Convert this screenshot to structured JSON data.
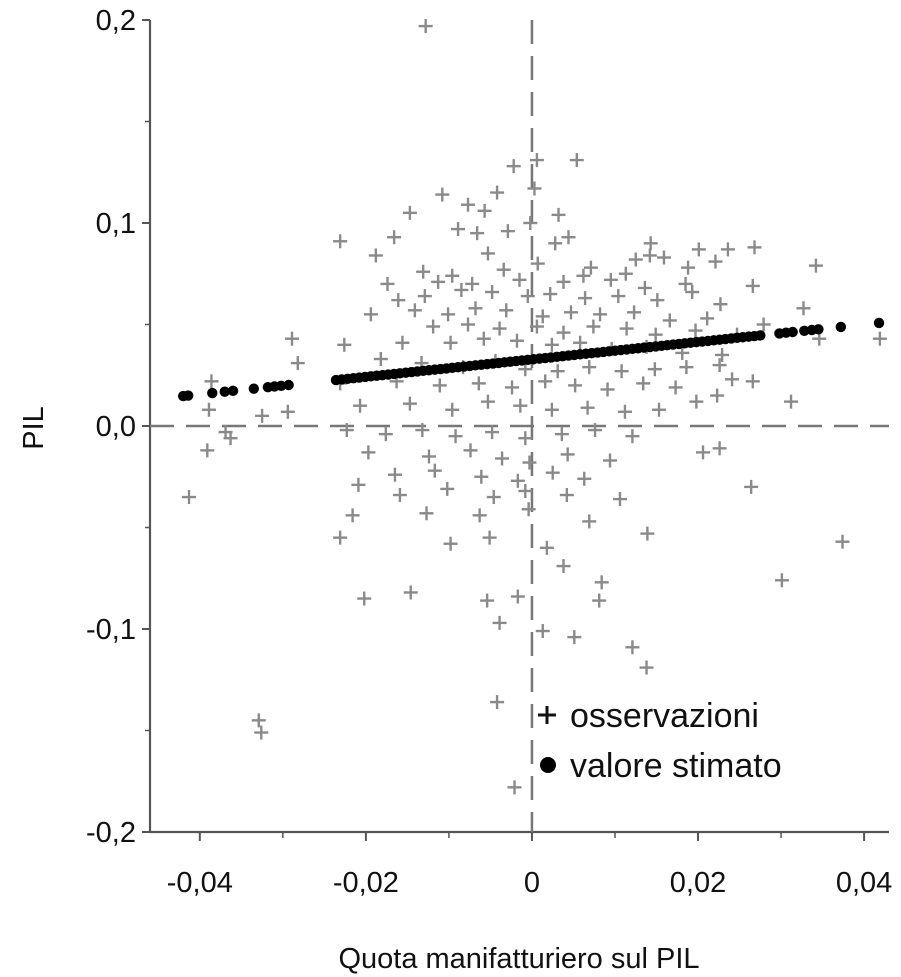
{
  "chart_data": {
    "type": "scatter",
    "title": "",
    "xlabel": "Quota manifatturiero sul PIL",
    "ylabel": "PIL",
    "xlim": [
      -0.046,
      0.043
    ],
    "ylim": [
      -0.2,
      0.2
    ],
    "x_ticks": [
      {
        "value": -0.04,
        "label": "-0,04"
      },
      {
        "value": -0.02,
        "label": "-0,02"
      },
      {
        "value": 0,
        "label": "0"
      },
      {
        "value": 0.02,
        "label": "0,02"
      },
      {
        "value": 0.04,
        "label": "0,04"
      }
    ],
    "y_ticks": [
      {
        "value": 0.2,
        "label": "0,2"
      },
      {
        "value": 0.1,
        "label": "0,1"
      },
      {
        "value": 0.0,
        "label": "0,0"
      },
      {
        "value": -0.1,
        "label": "-0,1"
      },
      {
        "value": -0.2,
        "label": "-0,2"
      }
    ],
    "reference_lines": {
      "x": 0,
      "y": 0,
      "style": "dashed"
    },
    "grid": false,
    "legend": {
      "position": "bottom-right",
      "entries": [
        {
          "marker": "plus",
          "label": "osservazioni",
          "color": "#8a8a8a"
        },
        {
          "marker": "dot",
          "label": "valore stimato",
          "color": "#000000"
        }
      ]
    },
    "series": [
      {
        "name": "osservazioni",
        "marker": "plus",
        "color": "#8a8a8a",
        "points": [
          [
            -0.0128,
            0.197
          ],
          [
            0.0006,
            0.131
          ],
          [
            -0.0022,
            0.128
          ],
          [
            0.0054,
            0.131
          ],
          [
            -0.0042,
            0.115
          ],
          [
            -0.0108,
            0.114
          ],
          [
            -0.0077,
            0.109
          ],
          [
            0.0003,
            0.117
          ],
          [
            -0.0057,
            0.106
          ],
          [
            -0.0147,
            0.105
          ],
          [
            -0.0002,
            0.1
          ],
          [
            0.0032,
            0.104
          ],
          [
            -0.0089,
            0.097
          ],
          [
            -0.0066,
            0.095
          ],
          [
            -0.0029,
            0.096
          ],
          [
            0.0044,
            0.093
          ],
          [
            -0.0231,
            0.091
          ],
          [
            -0.0166,
            0.093
          ],
          [
            0.0028,
            0.09
          ],
          [
            0.0143,
            0.09
          ],
          [
            0.0142,
            0.084
          ],
          [
            0.0201,
            0.087
          ],
          [
            0.0236,
            0.087
          ],
          [
            0.0268,
            0.088
          ],
          [
            -0.0188,
            0.084
          ],
          [
            -0.0053,
            0.085
          ],
          [
            0.0007,
            0.08
          ],
          [
            0.0071,
            0.078
          ],
          [
            0.0125,
            0.082
          ],
          [
            0.0159,
            0.083
          ],
          [
            0.0221,
            0.081
          ],
          [
            -0.0131,
            0.076
          ],
          [
            -0.0096,
            0.074
          ],
          [
            -0.0034,
            0.077
          ],
          [
            0.0062,
            0.074
          ],
          [
            0.0113,
            0.075
          ],
          [
            0.0188,
            0.078
          ],
          [
            0.0342,
            0.079
          ],
          [
            -0.0174,
            0.07
          ],
          [
            -0.0113,
            0.071
          ],
          [
            -0.0072,
            0.07
          ],
          [
            -0.0015,
            0.072
          ],
          [
            0.0038,
            0.071
          ],
          [
            0.0095,
            0.072
          ],
          [
            0.0136,
            0.068
          ],
          [
            0.0185,
            0.07
          ],
          [
            0.0266,
            0.069
          ],
          [
            -0.0161,
            0.062
          ],
          [
            -0.0129,
            0.064
          ],
          [
            -0.0085,
            0.067
          ],
          [
            -0.0048,
            0.066
          ],
          [
            -0.0005,
            0.064
          ],
          [
            0.0022,
            0.065
          ],
          [
            0.0064,
            0.063
          ],
          [
            0.0104,
            0.064
          ],
          [
            0.0151,
            0.062
          ],
          [
            0.0193,
            0.066
          ],
          [
            0.0227,
            0.06
          ],
          [
            -0.0194,
            0.055
          ],
          [
            -0.0141,
            0.057
          ],
          [
            -0.0101,
            0.055
          ],
          [
            -0.0068,
            0.058
          ],
          [
            -0.0031,
            0.057
          ],
          [
            0.0013,
            0.054
          ],
          [
            0.0047,
            0.056
          ],
          [
            0.0082,
            0.055
          ],
          [
            0.0123,
            0.056
          ],
          [
            0.0166,
            0.052
          ],
          [
            0.0211,
            0.053
          ],
          [
            0.0279,
            0.05
          ],
          [
            0.0327,
            0.058
          ],
          [
            -0.0119,
            0.049
          ],
          [
            -0.0077,
            0.05
          ],
          [
            -0.0039,
            0.048
          ],
          [
            0.0006,
            0.049
          ],
          [
            0.0038,
            0.046
          ],
          [
            0.0074,
            0.049
          ],
          [
            0.0114,
            0.048
          ],
          [
            0.0149,
            0.045
          ],
          [
            0.0197,
            0.047
          ],
          [
            0.0247,
            0.045
          ],
          [
            -0.0289,
            0.043
          ],
          [
            -0.0226,
            0.04
          ],
          [
            -0.0156,
            0.041
          ],
          [
            -0.0098,
            0.041
          ],
          [
            -0.0058,
            0.043
          ],
          [
            -0.0018,
            0.042
          ],
          [
            0.0024,
            0.04
          ],
          [
            0.0058,
            0.041
          ],
          [
            0.0096,
            0.038
          ],
          [
            0.0138,
            0.039
          ],
          [
            0.0181,
            0.036
          ],
          [
            0.0229,
            0.035
          ],
          [
            0.0346,
            0.043
          ],
          [
            0.0419,
            0.043
          ],
          [
            -0.0282,
            0.031
          ],
          [
            -0.0182,
            0.033
          ],
          [
            -0.0133,
            0.031
          ],
          [
            -0.0083,
            0.029
          ],
          [
            -0.0044,
            0.032
          ],
          [
            -0.0008,
            0.028
          ],
          [
            0.0031,
            0.027
          ],
          [
            0.0069,
            0.029
          ],
          [
            0.0108,
            0.027
          ],
          [
            0.0148,
            0.028
          ],
          [
            0.0186,
            0.029
          ],
          [
            0.0226,
            0.03
          ],
          [
            -0.0386,
            0.022
          ],
          [
            -0.0231,
            0.021
          ],
          [
            -0.0163,
            0.022
          ],
          [
            -0.0111,
            0.02
          ],
          [
            -0.0064,
            0.021
          ],
          [
            -0.0024,
            0.019
          ],
          [
            0.0016,
            0.022
          ],
          [
            0.0052,
            0.02
          ],
          [
            0.0091,
            0.018
          ],
          [
            0.0134,
            0.021
          ],
          [
            0.0173,
            0.019
          ],
          [
            0.0241,
            0.023
          ],
          [
            0.0266,
            0.022
          ],
          [
            -0.0389,
            0.008
          ],
          [
            -0.0325,
            0.005
          ],
          [
            -0.0294,
            0.007
          ],
          [
            -0.0207,
            0.01
          ],
          [
            -0.0147,
            0.011
          ],
          [
            -0.0096,
            0.008
          ],
          [
            -0.0053,
            0.012
          ],
          [
            -0.0014,
            0.01
          ],
          [
            0.0024,
            0.008
          ],
          [
            0.0067,
            0.009
          ],
          [
            0.0112,
            0.007
          ],
          [
            0.0153,
            0.008
          ],
          [
            0.0198,
            0.012
          ],
          [
            0.0223,
            0.015
          ],
          [
            0.0312,
            0.012
          ],
          [
            -0.0369,
            -0.003
          ],
          [
            -0.0223,
            -0.002
          ],
          [
            -0.0176,
            -0.004
          ],
          [
            -0.0132,
            -0.002
          ],
          [
            -0.0092,
            -0.005
          ],
          [
            -0.0048,
            -0.003
          ],
          [
            -0.0008,
            -0.006
          ],
          [
            0.0036,
            -0.004
          ],
          [
            0.0076,
            -0.002
          ],
          [
            0.0121,
            -0.005
          ],
          [
            -0.0391,
            -0.012
          ],
          [
            -0.0363,
            -0.006
          ],
          [
            -0.0197,
            -0.013
          ],
          [
            -0.0124,
            -0.015
          ],
          [
            -0.0074,
            -0.012
          ],
          [
            -0.0036,
            -0.016
          ],
          [
            -0.0003,
            -0.018
          ],
          [
            0.0043,
            -0.014
          ],
          [
            0.0094,
            -0.017
          ],
          [
            0.0206,
            -0.013
          ],
          [
            0.0226,
            -0.011
          ],
          [
            -0.0165,
            -0.024
          ],
          [
            -0.0117,
            -0.022
          ],
          [
            -0.0061,
            -0.025
          ],
          [
            -0.0017,
            -0.027
          ],
          [
            0.0025,
            -0.023
          ],
          [
            0.0063,
            -0.026
          ],
          [
            -0.0413,
            -0.035
          ],
          [
            -0.0209,
            -0.029
          ],
          [
            -0.0159,
            -0.034
          ],
          [
            -0.0102,
            -0.031
          ],
          [
            -0.0046,
            -0.035
          ],
          [
            -0.0008,
            -0.032
          ],
          [
            0.0042,
            -0.034
          ],
          [
            0.0106,
            -0.036
          ],
          [
            0.0264,
            -0.03
          ],
          [
            -0.0216,
            -0.044
          ],
          [
            -0.0127,
            -0.043
          ],
          [
            -0.0063,
            -0.044
          ],
          [
            -0.0004,
            -0.041
          ],
          [
            0.0069,
            -0.047
          ],
          [
            -0.0231,
            -0.055
          ],
          [
            -0.0098,
            -0.058
          ],
          [
            -0.0051,
            -0.055
          ],
          [
            0.0018,
            -0.06
          ],
          [
            0.0139,
            -0.053
          ],
          [
            0.0374,
            -0.057
          ],
          [
            0.0038,
            -0.069
          ],
          [
            -0.0202,
            -0.085
          ],
          [
            -0.0146,
            -0.082
          ],
          [
            -0.0054,
            -0.086
          ],
          [
            -0.0017,
            -0.084
          ],
          [
            0.0084,
            -0.077
          ],
          [
            0.0301,
            -0.076
          ],
          [
            -0.0039,
            -0.097
          ],
          [
            0.0081,
            -0.086
          ],
          [
            0.0013,
            -0.101
          ],
          [
            0.0051,
            -0.104
          ],
          [
            0.0121,
            -0.109
          ],
          [
            0.0138,
            -0.119
          ],
          [
            -0.0329,
            -0.145
          ],
          [
            -0.0326,
            -0.151
          ],
          [
            -0.0042,
            -0.136
          ],
          [
            -0.0021,
            -0.178
          ]
        ]
      },
      {
        "name": "valore stimato",
        "marker": "dot",
        "color": "#000000",
        "fitted_line": {
          "slope": 0.43,
          "intercept": 0.0328
        },
        "x": [
          -0.042,
          -0.0414,
          -0.0385,
          -0.037,
          -0.036,
          -0.0335,
          -0.0318,
          -0.031,
          -0.0302,
          -0.0293,
          -0.0236,
          -0.0229,
          -0.0222,
          -0.0215,
          -0.0208,
          -0.0201,
          -0.0194,
          -0.0187,
          -0.018,
          -0.0173,
          -0.0166,
          -0.0159,
          -0.0152,
          -0.0145,
          -0.0138,
          -0.0131,
          -0.0124,
          -0.0117,
          -0.011,
          -0.0103,
          -0.0096,
          -0.0089,
          -0.0082,
          -0.0075,
          -0.0068,
          -0.0061,
          -0.0054,
          -0.0047,
          -0.004,
          -0.0033,
          -0.0026,
          -0.0019,
          -0.0012,
          -0.0005,
          0.0002,
          0.0009,
          0.0016,
          0.0023,
          0.003,
          0.0037,
          0.0044,
          0.0051,
          0.0058,
          0.0065,
          0.0072,
          0.0079,
          0.0086,
          0.0093,
          0.01,
          0.0107,
          0.0114,
          0.0121,
          0.0128,
          0.0135,
          0.0142,
          0.0149,
          0.0156,
          0.0163,
          0.017,
          0.0177,
          0.0184,
          0.0191,
          0.0198,
          0.0205,
          0.0212,
          0.0219,
          0.0226,
          0.0233,
          0.024,
          0.0247,
          0.0254,
          0.0261,
          0.0268,
          0.0275,
          0.0298,
          0.0306,
          0.0314,
          0.0328,
          0.0337,
          0.0345,
          0.0372,
          0.0418
        ]
      }
    ]
  }
}
